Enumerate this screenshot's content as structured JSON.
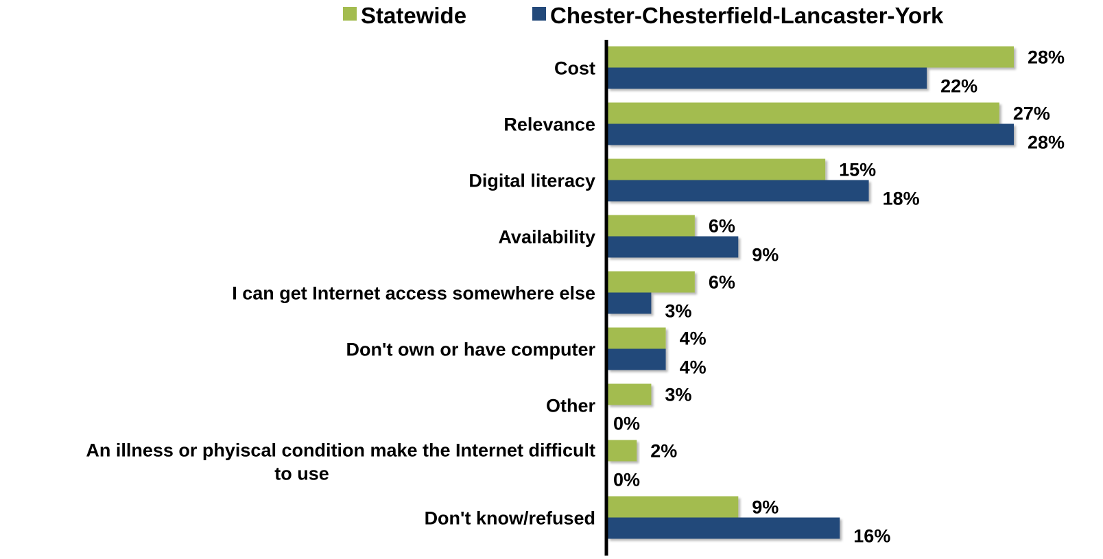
{
  "chart_data": {
    "type": "bar",
    "orientation": "horizontal",
    "categories": [
      "Cost",
      "Relevance",
      "Digital literacy",
      "Availability",
      "I can get Internet access somewhere else",
      "Don't own or have computer",
      "Other",
      "An illness or phyiscal condition make the Internet difficult to use",
      "Don't know/refused"
    ],
    "category_lines": [
      [
        "Cost"
      ],
      [
        "Relevance"
      ],
      [
        "Digital literacy"
      ],
      [
        "Availability"
      ],
      [
        "I can get Internet access somewhere else"
      ],
      [
        "Don't own or have computer"
      ],
      [
        "Other"
      ],
      [
        "An illness or phyiscal condition make the Internet difficult",
        "to use"
      ],
      [
        "Don't know/refused"
      ]
    ],
    "series": [
      {
        "name": "Statewide",
        "color": "#A3BC4F",
        "values": [
          28,
          27,
          15,
          6,
          6,
          4,
          3,
          2,
          9
        ],
        "labels": [
          "28%",
          "27%",
          "15%",
          "6%",
          "6%",
          "4%",
          "3%",
          "2%",
          "9%"
        ]
      },
      {
        "name": "Chester-Chesterfield-Lancaster-York",
        "color": "#23497A",
        "values": [
          22,
          28,
          18,
          9,
          3,
          4,
          0,
          0,
          16
        ],
        "labels": [
          "22%",
          "28%",
          "18%",
          "9%",
          "3%",
          "4%",
          "0%",
          "0%",
          "16%"
        ]
      }
    ],
    "value_unit": "%",
    "xlim": [
      0,
      28
    ],
    "legend_position": "top",
    "grid": false,
    "title": "",
    "xlabel": "",
    "ylabel": ""
  }
}
